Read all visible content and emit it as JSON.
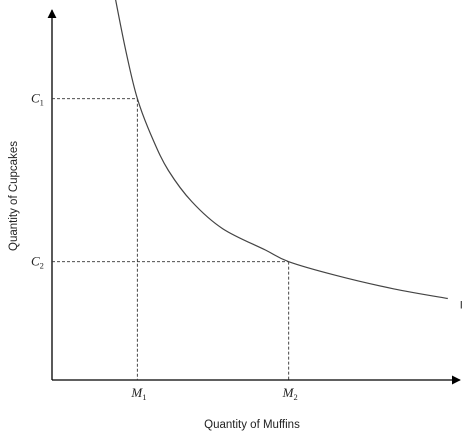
{
  "chart_data": {
    "type": "line",
    "title": "",
    "xlabel": "Quantity of Muffins",
    "ylabel": "Quantity of Cupcakes",
    "xlim": [
      0,
      11
    ],
    "ylim": [
      0,
      11
    ],
    "grid": false,
    "axis_arrows": true,
    "series": [
      {
        "name": "I",
        "color": "#444444",
        "points": [
          {
            "x": 1.6,
            "y": 10.0
          },
          {
            "x": 1.9,
            "y": 8.5
          },
          {
            "x": 2.2,
            "y": 7.25
          },
          {
            "x": 2.6,
            "y": 6.2
          },
          {
            "x": 3.0,
            "y": 5.4
          },
          {
            "x": 3.6,
            "y": 4.6
          },
          {
            "x": 4.4,
            "y": 3.9
          },
          {
            "x": 5.5,
            "y": 3.35
          },
          {
            "x": 6.1,
            "y": 3.05
          },
          {
            "x": 7.3,
            "y": 2.7
          },
          {
            "x": 8.8,
            "y": 2.35
          },
          {
            "x": 10.2,
            "y": 2.1
          }
        ]
      }
    ],
    "reference_points": [
      {
        "x": 2.2,
        "y": 7.25,
        "x_label": "M",
        "x_sub": "1",
        "y_label": "C",
        "y_sub": "1"
      },
      {
        "x": 6.1,
        "y": 3.05,
        "x_label": "M",
        "x_sub": "2",
        "y_label": "C",
        "y_sub": "2"
      }
    ]
  }
}
